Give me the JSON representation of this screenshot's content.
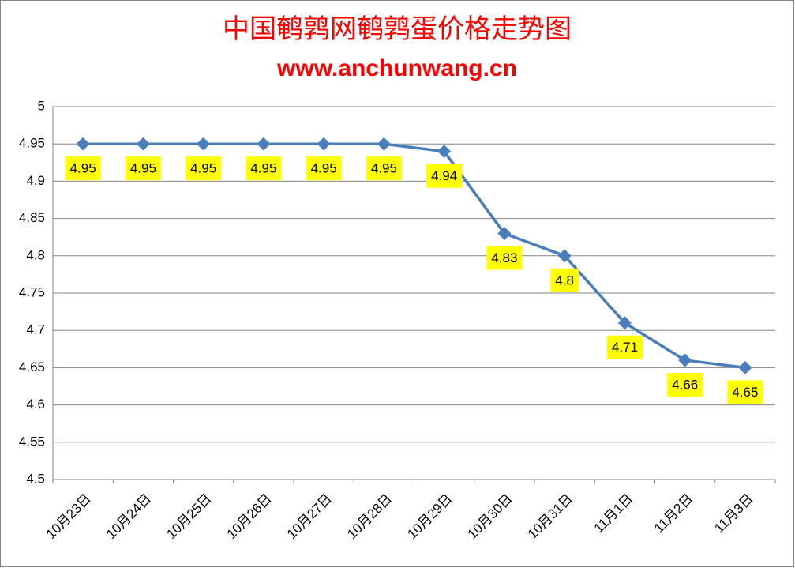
{
  "chart_data": {
    "type": "line",
    "title": "中国鹌鹑网鹌鹑蛋价格走势图",
    "subtitle": "www.anchunwang.cn",
    "categories": [
      "10月23日",
      "10月24日",
      "10月25日",
      "10月26日",
      "10月27日",
      "10月28日",
      "10月29日",
      "10月30日",
      "10月31日",
      "11月1日",
      "11月2日",
      "11月3日"
    ],
    "series": [
      {
        "color": "#4a7ebb",
        "values": [
          4.95,
          4.95,
          4.95,
          4.95,
          4.95,
          4.95,
          4.94,
          4.83,
          4.8,
          4.71,
          4.66,
          4.65
        ]
      }
    ],
    "ylim": [
      4.5,
      5
    ],
    "yticks": [
      4.5,
      4.55,
      4.6,
      4.65,
      4.7,
      4.75,
      4.8,
      4.85,
      4.9,
      4.95,
      5
    ],
    "grid": true
  }
}
